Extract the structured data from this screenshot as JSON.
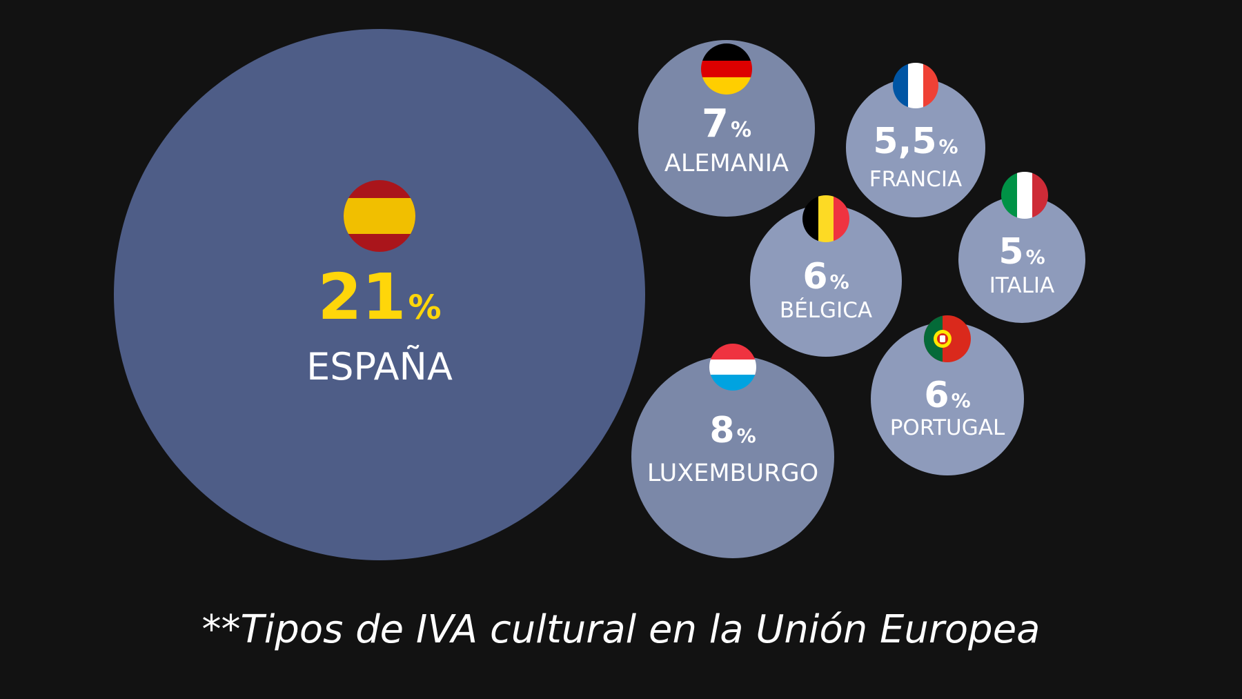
{
  "colors": {
    "background": "#121212",
    "highlight_bubble": "#4e5d87",
    "bubble": "#7b88a8",
    "bubble_light": "#8e9bbb",
    "highlight_text": "#ffd60a",
    "text": "#ffffff"
  },
  "caption": "**Tipos de IVA cultural en la Unión Europea",
  "chart_data": {
    "type": "bubble",
    "unit": "%",
    "items": [
      {
        "country": "ESPAÑA",
        "value": 21,
        "label": "21",
        "flag": "spain-flag-icon",
        "highlight": true
      },
      {
        "country": "ALEMANIA",
        "value": 7,
        "label": "7",
        "flag": "germany-flag-icon",
        "highlight": false
      },
      {
        "country": "FRANCIA",
        "value": 5.5,
        "label": "5,5",
        "flag": "france-flag-icon",
        "highlight": false
      },
      {
        "country": "BÉLGICA",
        "value": 6,
        "label": "6",
        "flag": "belgium-flag-icon",
        "highlight": false
      },
      {
        "country": "ITALIA",
        "value": 5,
        "label": "5",
        "flag": "italy-flag-icon",
        "highlight": false
      },
      {
        "country": "LUXEMBURGO",
        "value": 8,
        "label": "8",
        "flag": "luxembourg-flag-icon",
        "highlight": false
      },
      {
        "country": "PORTUGAL",
        "value": 6,
        "label": "6",
        "flag": "portugal-flag-icon",
        "highlight": false
      }
    ]
  }
}
